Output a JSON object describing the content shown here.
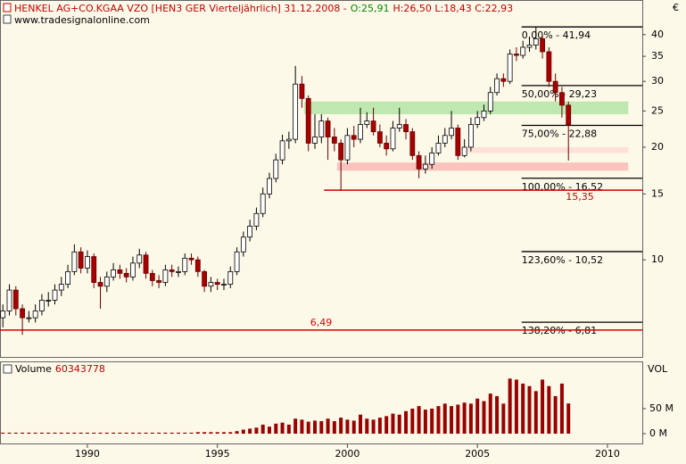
{
  "chart_data": [
    {
      "type": "candlestick",
      "title": "HENKEL AG+CO.KGAA VZO [HEN3 GER  Vierteljährlich] 31.12.2008 -",
      "open_label": "O:25,91",
      "hlc_label": "H:26,50 L:18,43 C:22,93",
      "source": "www.tradesignalonline.com",
      "y_unit": "€",
      "log_scale": true,
      "color_up": "#ffffff",
      "color_down": "#a80000",
      "xlim": [
        1986.64,
        2011.34
      ],
      "ylim": [
        5.5,
        49.5
      ],
      "yticks": [
        10,
        15,
        20,
        25,
        30,
        35,
        40
      ],
      "x": [
        1986.75,
        1987,
        1987.25,
        1987.5,
        1987.75,
        1988,
        1988.25,
        1988.5,
        1988.75,
        1989,
        1989.25,
        1989.5,
        1989.75,
        1990,
        1990.25,
        1990.5,
        1990.75,
        1991,
        1991.25,
        1991.5,
        1991.75,
        1992,
        1992.25,
        1992.5,
        1992.75,
        1993,
        1993.25,
        1993.5,
        1993.75,
        1994,
        1994.25,
        1994.5,
        1994.75,
        1995,
        1995.25,
        1995.5,
        1995.75,
        1996,
        1996.25,
        1996.5,
        1996.75,
        1997,
        1997.25,
        1997.5,
        1997.75,
        1998,
        1998.25,
        1998.5,
        1998.75,
        1999,
        1999.25,
        1999.5,
        1999.75,
        2000,
        2000.25,
        2000.5,
        2000.75,
        2001,
        2001.25,
        2001.5,
        2001.75,
        2002,
        2002.25,
        2002.5,
        2002.75,
        2003,
        2003.25,
        2003.5,
        2003.75,
        2004,
        2004.25,
        2004.5,
        2004.75,
        2005,
        2005.25,
        2005.5,
        2005.75,
        2006,
        2006.25,
        2006.5,
        2006.75,
        2007,
        2007.25,
        2007.5,
        2007.75,
        2008,
        2008.25,
        2008.5
      ],
      "open": [
        7.0,
        7.3,
        8.3,
        7.4,
        7.0,
        7.0,
        7.3,
        7.8,
        7.8,
        8.3,
        8.6,
        9.3,
        10.5,
        9.5,
        10.2,
        8.7,
        8.5,
        9.0,
        9.4,
        9.2,
        9.0,
        9.8,
        10.3,
        9.2,
        8.8,
        8.7,
        9.4,
        9.3,
        9.3,
        10.1,
        10.0,
        9.3,
        8.5,
        8.7,
        8.6,
        8.6,
        9.3,
        10.5,
        11.5,
        12.3,
        13.3,
        15.0,
        16.5,
        18.5,
        20.8,
        21.0,
        29.5,
        27.0,
        20.5,
        21.3,
        23.5,
        21.3,
        20.5,
        18.5,
        21.5,
        21.0,
        23.0,
        23.5,
        22.0,
        20.5,
        19.8,
        22.5,
        23.0,
        22.0,
        19.0,
        17.5,
        18.0,
        19.3,
        20.5,
        21.5,
        22.5,
        19.0,
        20.0,
        23.0,
        24.0,
        25.0,
        28.0,
        30.5,
        30.0,
        35.5,
        35.2,
        37.0,
        37.5,
        39.0,
        36.0,
        30.0,
        28.0,
        25.91
      ],
      "high": [
        7.6,
        8.6,
        8.5,
        7.6,
        7.3,
        7.6,
        8.1,
        8.2,
        8.6,
        9.0,
        9.7,
        11.0,
        10.8,
        10.6,
        10.4,
        9.0,
        9.3,
        9.8,
        9.7,
        9.5,
        10.2,
        10.7,
        10.5,
        9.4,
        9.1,
        9.7,
        9.7,
        9.6,
        10.4,
        10.4,
        10.2,
        9.4,
        9.0,
        8.9,
        8.9,
        9.6,
        10.8,
        11.9,
        12.8,
        13.8,
        15.6,
        17.1,
        19.2,
        21.6,
        22.0,
        33.0,
        31.0,
        27.5,
        24.5,
        24.5,
        24.0,
        22.5,
        21.0,
        22.5,
        22.8,
        25.5,
        24.8,
        25.5,
        23.0,
        21.5,
        23.5,
        25.5,
        23.8,
        22.5,
        19.5,
        19.0,
        20.0,
        21.5,
        22.5,
        25.0,
        23.0,
        21.0,
        24.0,
        25.0,
        26.0,
        29.0,
        31.5,
        31.5,
        36.5,
        37.0,
        38.5,
        39.5,
        41.94,
        40.0,
        37.0,
        31.5,
        29.0,
        26.5
      ],
      "low": [
        6.6,
        7.1,
        7.1,
        6.3,
        6.8,
        6.8,
        7.1,
        7.5,
        7.6,
        8.0,
        8.4,
        9.1,
        9.2,
        9.2,
        8.4,
        7.4,
        8.2,
        8.8,
        8.9,
        8.7,
        8.8,
        9.5,
        8.9,
        8.5,
        8.4,
        8.5,
        9.0,
        9.0,
        9.1,
        9.7,
        9.0,
        8.2,
        8.2,
        8.3,
        8.3,
        8.4,
        9.1,
        10.2,
        11.2,
        12.0,
        13.0,
        14.6,
        16.1,
        18.0,
        19.8,
        20.5,
        25.5,
        19.5,
        19.8,
        20.5,
        18.5,
        19.5,
        15.35,
        18.0,
        20.0,
        20.5,
        22.5,
        21.5,
        20.0,
        19.0,
        19.5,
        22.0,
        21.0,
        18.5,
        16.52,
        17.0,
        17.5,
        19.0,
        20.0,
        21.0,
        18.5,
        18.8,
        19.5,
        22.5,
        23.5,
        24.5,
        27.5,
        29.0,
        29.5,
        34.0,
        34.5,
        36.0,
        36.5,
        34.5,
        29.0,
        26.5,
        24.0,
        18.43
      ],
      "close": [
        7.3,
        8.3,
        7.4,
        7.0,
        7.0,
        7.3,
        7.8,
        7.8,
        8.3,
        8.6,
        9.3,
        10.5,
        9.5,
        10.2,
        8.7,
        8.5,
        9.0,
        9.4,
        9.2,
        9.0,
        9.8,
        10.3,
        9.2,
        8.8,
        8.7,
        9.4,
        9.3,
        9.3,
        10.1,
        10.0,
        9.3,
        8.5,
        8.7,
        8.6,
        8.6,
        9.3,
        10.5,
        11.5,
        12.3,
        13.3,
        15.0,
        16.5,
        18.5,
        20.8,
        21.0,
        29.5,
        27.0,
        20.5,
        21.3,
        23.5,
        21.3,
        20.5,
        18.5,
        21.5,
        21.0,
        23.0,
        23.5,
        22.0,
        20.5,
        19.8,
        22.5,
        23.0,
        22.0,
        19.0,
        17.5,
        18.0,
        19.3,
        20.5,
        21.5,
        22.5,
        19.0,
        20.0,
        23.0,
        24.0,
        25.0,
        28.0,
        30.5,
        30.0,
        35.5,
        35.2,
        37.0,
        37.5,
        39.0,
        36.0,
        30.0,
        28.0,
        25.91,
        22.93
      ],
      "fib_x_start": 2006.7,
      "fib_levels": [
        {
          "value": 41.94,
          "label": "0,00% - 41,94"
        },
        {
          "value": 29.23,
          "label": "50,00% - 29,23"
        },
        {
          "value": 22.88,
          "label": "75,00% - 22,88"
        },
        {
          "value": 16.52,
          "label": "100,00% - 16,52"
        },
        {
          "value": 10.52,
          "label": "123,60% - 10,52"
        },
        {
          "value": 6.81,
          "label": "138,20% - 6,81"
        }
      ],
      "support_lines": [
        {
          "value": 15.35,
          "label": "15,35",
          "x_start": 1999.1,
          "color": "#cc0000"
        },
        {
          "value": 6.49,
          "label": "6,49",
          "x_start": 1986.64,
          "color": "#dd0000"
        }
      ],
      "zones": [
        {
          "x_start": 1998.33,
          "x_end": 2010.8,
          "y_range": [
            24.5,
            26.5
          ],
          "color": "#bfe8b0"
        },
        {
          "x_start": 2004.5,
          "x_end": 2010.8,
          "y_range": [
            19.3,
            20.0
          ],
          "color": "#fde0d8"
        },
        {
          "x_start": 1999.6,
          "x_end": 2010.8,
          "y_range": [
            17.3,
            18.2
          ],
          "color": "#f9c4be"
        }
      ]
    },
    {
      "type": "bar",
      "label": "Volume",
      "y_label": "VOL",
      "color": "#990000",
      "xlim": [
        1986.64,
        2011.34
      ],
      "xticks": [
        1990,
        1995,
        2000,
        2005,
        2010
      ],
      "ylim": [
        -19600000,
        139000000
      ],
      "yticks": [
        {
          "value": 50000000,
          "label": "50 M"
        },
        {
          "value": 0,
          "label": "0 M"
        }
      ],
      "x": [
        1986.75,
        1987,
        1987.25,
        1987.5,
        1987.75,
        1988,
        1988.25,
        1988.5,
        1988.75,
        1989,
        1989.25,
        1989.5,
        1989.75,
        1990,
        1990.25,
        1990.5,
        1990.75,
        1991,
        1991.25,
        1991.5,
        1991.75,
        1992,
        1992.25,
        1992.5,
        1992.75,
        1993,
        1993.25,
        1993.5,
        1993.75,
        1994,
        1994.25,
        1994.5,
        1994.75,
        1995,
        1995.25,
        1995.5,
        1995.75,
        1996,
        1996.25,
        1996.5,
        1996.75,
        1997,
        1997.25,
        1997.5,
        1997.75,
        1998,
        1998.25,
        1998.5,
        1998.75,
        1999,
        1999.25,
        1999.5,
        1999.75,
        2000,
        2000.25,
        2000.5,
        2000.75,
        2001,
        2001.25,
        2001.5,
        2001.75,
        2002,
        2002.25,
        2002.5,
        2002.75,
        2003,
        2003.25,
        2003.5,
        2003.75,
        2004,
        2004.25,
        2004.5,
        2004.75,
        2005,
        2005.25,
        2005.5,
        2005.75,
        2006,
        2006.25,
        2006.5,
        2006.75,
        2007,
        2007.25,
        2007.5,
        2007.75,
        2008,
        2008.25,
        2008.5
      ],
      "values": [
        2000000,
        2000000,
        2000000,
        2000000,
        2000000,
        2000000,
        2000000,
        2000000,
        2000000,
        2000000,
        2000000,
        2000000,
        2000000,
        2000000,
        2000000,
        2000000,
        2000000,
        2000000,
        2000000,
        2000000,
        2000000,
        2000000,
        2000000,
        2000000,
        2000000,
        2000000,
        2000000,
        2000000,
        2000000,
        2000000,
        3000000,
        3000000,
        3000000,
        3000000,
        3000000,
        3000000,
        5000000,
        8000000,
        10000000,
        12000000,
        18000000,
        14000000,
        20000000,
        22000000,
        18000000,
        30000000,
        28000000,
        24000000,
        26000000,
        25000000,
        30000000,
        25000000,
        32000000,
        28000000,
        26000000,
        38000000,
        30000000,
        28000000,
        32000000,
        35000000,
        40000000,
        38000000,
        45000000,
        50000000,
        55000000,
        48000000,
        50000000,
        55000000,
        60000000,
        55000000,
        58000000,
        62000000,
        60000000,
        70000000,
        65000000,
        80000000,
        75000000,
        60000000,
        110000000,
        108000000,
        100000000,
        95000000,
        85000000,
        108000000,
        95000000,
        75000000,
        100000000,
        60343778
      ]
    }
  ]
}
